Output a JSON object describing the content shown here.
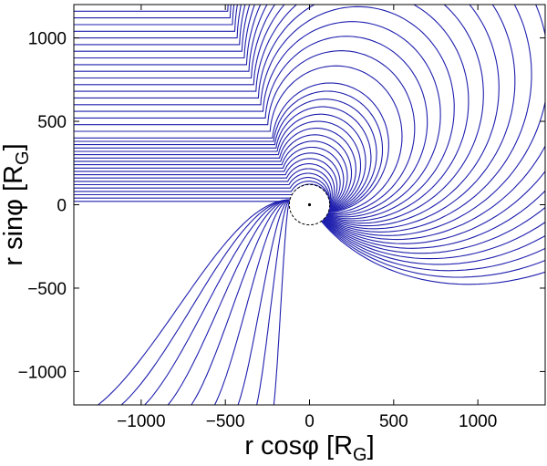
{
  "chart_data": {
    "type": "line",
    "title": "",
    "xlabel": {
      "main": "r cosφ [R",
      "sub": "G",
      "close": "]"
    },
    "ylabel": {
      "main": "r sinφ [R",
      "sub": "G",
      "close": "]"
    },
    "xlim": [
      -1400,
      1400
    ],
    "ylim": [
      -1200,
      1200
    ],
    "xticks": [
      -1000,
      -500,
      0,
      500,
      1000
    ],
    "yticks": [
      -1000,
      -500,
      0,
      500,
      1000
    ],
    "xtick_labels": [
      "−1000",
      "−500",
      "0",
      "500",
      "1000"
    ],
    "ytick_labels": [
      "−1000",
      "−500",
      "0",
      "500",
      "1000"
    ],
    "grid": false,
    "colors": {
      "lines": "#1f1fae",
      "axes": "#000000",
      "background": "#ffffff"
    },
    "family": {
      "description_of_shape": "streamlines starting horizontally from the left and spiralling in to a central circle",
      "inner_radius": 120,
      "center_marker": [
        0,
        0
      ],
      "offsets": [
        20,
        40,
        60,
        80,
        100,
        120,
        140,
        160,
        180,
        200,
        220,
        240,
        260,
        280,
        300,
        320,
        340,
        360,
        380,
        400,
        440,
        480,
        520,
        560,
        600,
        640,
        680,
        720,
        760,
        800,
        840,
        880,
        920,
        960,
        1000,
        1040,
        1080,
        1120,
        1160,
        1200
      ]
    },
    "lower_family_entries_x": [
      -1350,
      -1200,
      -1050,
      -900,
      -750,
      -600,
      -450,
      -330,
      -220
    ]
  }
}
